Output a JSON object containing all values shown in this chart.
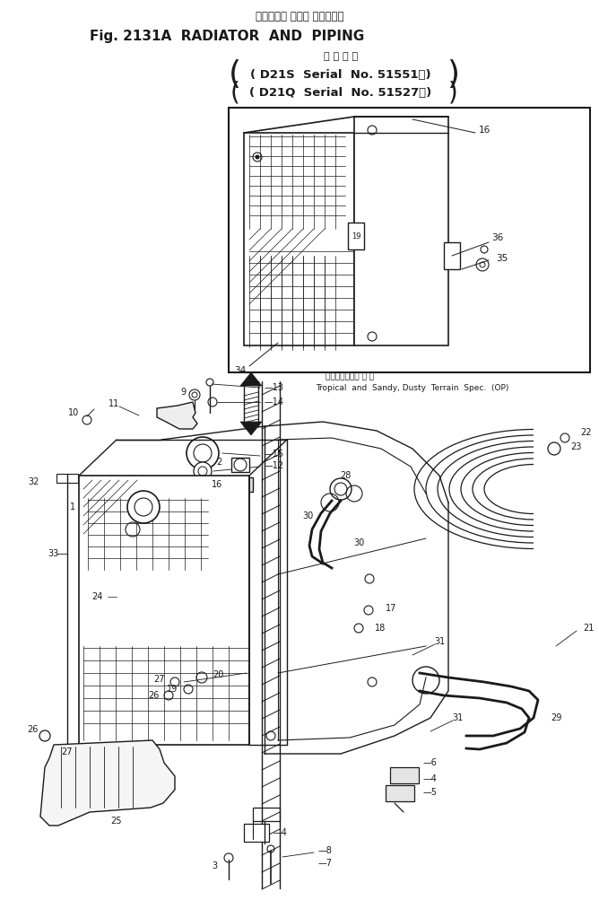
{
  "title_jp": "ラジエータ および パイピング",
  "title_en": "Fig. 2131A  RADIATOR  AND  PIPING",
  "subtitle_jp": "適 用 号 機",
  "model1": "( D21S  Serial  No. 51551～)",
  "model2": "( D21Q  Serial  No. 51527～)",
  "inset_jp": "熱帯・砂地・場 仕 様",
  "inset_en": "Tropical  and  Sandy, Dusty  Terrain  Spec.  (OP)",
  "bg": "#ffffff",
  "lc": "#1a1a1a",
  "figsize": [
    6.68,
    10.13
  ],
  "dpi": 100
}
